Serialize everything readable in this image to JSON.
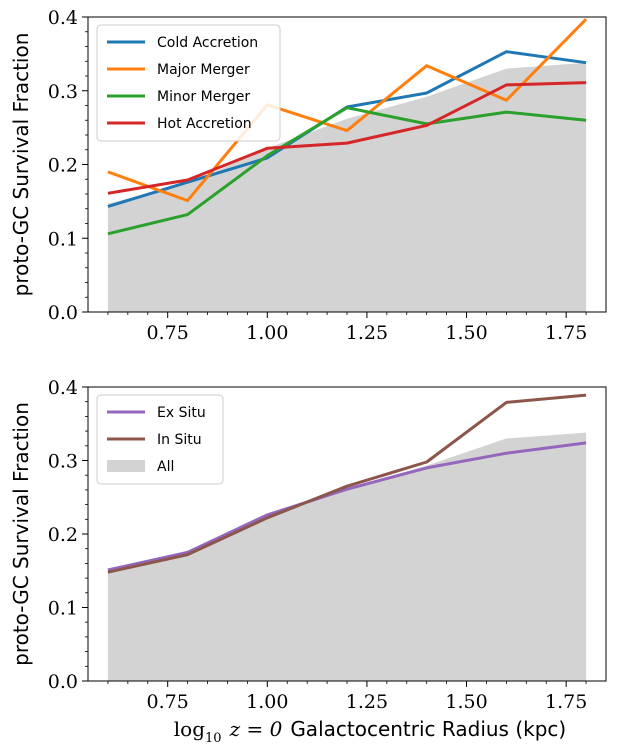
{
  "xlabel": {
    "prefix": "log",
    "subscript": "10",
    "math": "z = 0",
    "text": "Galactocentric Radius (kpc)"
  },
  "chart_data": [
    {
      "type": "line",
      "xlabel": "",
      "ylabel": "proto-GC Survival Fraction",
      "xlim": [
        0.55,
        1.85
      ],
      "ylim": [
        0.0,
        0.4
      ],
      "grid": false,
      "legend": "top-left",
      "xticks": [
        0.75,
        1.0,
        1.25,
        1.5,
        1.75
      ],
      "xtick_labels": [
        "0.75",
        "1.00",
        "1.25",
        "1.50",
        "1.75"
      ],
      "yticks": [
        0.0,
        0.1,
        0.2,
        0.3,
        0.4
      ],
      "ytick_labels": [
        "0.0",
        "0.1",
        "0.2",
        "0.3",
        "0.4"
      ],
      "x": [
        0.6,
        0.8,
        1.0,
        1.2,
        1.4,
        1.6,
        1.8
      ],
      "area": {
        "name": "",
        "color": "#d3d3d3",
        "values": [
          0.147,
          0.174,
          0.222,
          0.262,
          0.292,
          0.33,
          0.338
        ]
      },
      "series": [
        {
          "name": "Cold Accretion",
          "color": "#1f77b4",
          "values": [
            0.143,
            0.176,
            0.209,
            0.278,
            0.297,
            0.353,
            0.338
          ]
        },
        {
          "name": "Major Merger",
          "color": "#ff7f0e",
          "values": [
            0.19,
            0.151,
            0.281,
            0.246,
            0.334,
            0.287,
            0.397
          ]
        },
        {
          "name": "Minor Merger",
          "color": "#2ca02c",
          "values": [
            0.106,
            0.132,
            0.212,
            0.277,
            0.255,
            0.271,
            0.26
          ]
        },
        {
          "name": "Hot Accretion",
          "color": "#d62728",
          "values": [
            0.161,
            0.179,
            0.222,
            0.229,
            0.253,
            0.308,
            0.311
          ]
        }
      ]
    },
    {
      "type": "line",
      "xlabel": "",
      "ylabel": "proto-GC Survival Fraction",
      "xlim": [
        0.55,
        1.85
      ],
      "ylim": [
        0.0,
        0.4
      ],
      "grid": false,
      "legend": "top-left",
      "xticks": [
        0.75,
        1.0,
        1.25,
        1.5,
        1.75
      ],
      "xtick_labels": [
        "0.75",
        "1.00",
        "1.25",
        "1.50",
        "1.75"
      ],
      "yticks": [
        0.0,
        0.1,
        0.2,
        0.3,
        0.4
      ],
      "ytick_labels": [
        "0.0",
        "0.1",
        "0.2",
        "0.3",
        "0.4"
      ],
      "x": [
        0.6,
        0.8,
        1.0,
        1.2,
        1.4,
        1.6,
        1.8
      ],
      "area": {
        "name": "All",
        "color": "#d3d3d3",
        "values": [
          0.148,
          0.173,
          0.222,
          0.262,
          0.293,
          0.33,
          0.338
        ]
      },
      "series": [
        {
          "name": "Ex Situ",
          "color": "#9467bd",
          "values": [
            0.151,
            0.175,
            0.226,
            0.261,
            0.29,
            0.31,
            0.324
          ]
        },
        {
          "name": "In Situ",
          "color": "#8c564b",
          "values": [
            0.148,
            0.172,
            0.222,
            0.265,
            0.298,
            0.379,
            0.389
          ]
        }
      ]
    }
  ]
}
